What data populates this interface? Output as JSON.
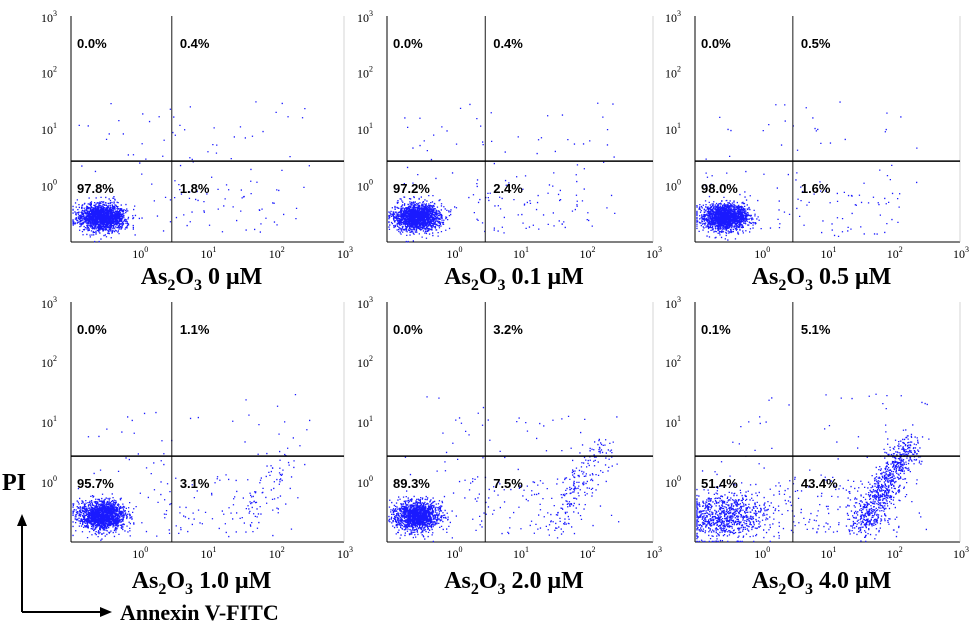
{
  "figure": {
    "y_axis_label": "PI",
    "x_axis_label": "Annexin  V-FITC",
    "colors": {
      "dots": "#1a1aff",
      "axes": "#000000",
      "background": "#ffffff"
    }
  },
  "chart_data": [
    {
      "type": "scatter",
      "caption": {
        "prefix": "As",
        "sub1": "2",
        "mid": "O",
        "sub2": "3",
        "suffix": " 0 μM"
      },
      "x_ticks": [
        "10⁰",
        "10¹",
        "10²",
        "10³"
      ],
      "x_ticks_display": [
        "10",
        "10",
        "10",
        "10"
      ],
      "x_tick_exponents": [
        "0",
        "1",
        "2",
        "3"
      ],
      "y_ticks_display": [
        "10",
        "10",
        "10",
        "10"
      ],
      "y_tick_exponents": [
        "0",
        "1",
        "2",
        "3"
      ],
      "x_scale": "log",
      "y_scale": "log",
      "xlim": [
        0.1,
        1000
      ],
      "ylim": [
        0.1,
        1000
      ],
      "gate": {
        "x": 3,
        "y": 2.7
      },
      "quadrants": {
        "upper_left": "0.0%",
        "upper_right": "0.4%",
        "lower_left": "97.8%",
        "lower_right": "1.8%"
      },
      "distribution": {
        "apoptotic_spread": 0.02,
        "diagonal": 0.0
      }
    },
    {
      "type": "scatter",
      "caption": {
        "prefix": "As",
        "sub1": "2",
        "mid": "O",
        "sub2": "3",
        "suffix": " 0.1 μM"
      },
      "x_ticks_display": [
        "10",
        "10",
        "10",
        "10"
      ],
      "x_tick_exponents": [
        "0",
        "1",
        "2",
        "3"
      ],
      "y_ticks_display": [
        "10",
        "10",
        "10",
        "10"
      ],
      "y_tick_exponents": [
        "0",
        "1",
        "2",
        "3"
      ],
      "x_scale": "log",
      "y_scale": "log",
      "xlim": [
        0.1,
        1000
      ],
      "ylim": [
        0.1,
        1000
      ],
      "gate": {
        "x": 3,
        "y": 2.7
      },
      "quadrants": {
        "upper_left": "0.0%",
        "upper_right": "0.4%",
        "lower_left": "97.2%",
        "lower_right": "2.4%"
      },
      "distribution": {
        "apoptotic_spread": 0.03,
        "diagonal": 0.0
      }
    },
    {
      "type": "scatter",
      "caption": {
        "prefix": "As",
        "sub1": "2",
        "mid": "O",
        "sub2": "3",
        "suffix": " 0.5 μM"
      },
      "x_ticks_display": [
        "10",
        "10",
        "10",
        "10"
      ],
      "x_tick_exponents": [
        "0",
        "1",
        "2",
        "3"
      ],
      "y_ticks_display": [
        "10",
        "10",
        "10",
        "10"
      ],
      "y_tick_exponents": [
        "0",
        "1",
        "2",
        "3"
      ],
      "x_scale": "log",
      "y_scale": "log",
      "xlim": [
        0.1,
        1000
      ],
      "ylim": [
        0.1,
        1000
      ],
      "gate": {
        "x": 3,
        "y": 2.7
      },
      "quadrants": {
        "upper_left": "0.0%",
        "upper_right": "0.5%",
        "lower_left": "98.0%",
        "lower_right": "1.6%"
      },
      "distribution": {
        "apoptotic_spread": 0.02,
        "diagonal": 0.0
      }
    },
    {
      "type": "scatter",
      "caption": {
        "prefix": "As",
        "sub1": "2",
        "mid": "O",
        "sub2": "3",
        "suffix": " 1.0 μM"
      },
      "x_ticks_display": [
        "10",
        "10",
        "10",
        "10"
      ],
      "x_tick_exponents": [
        "0",
        "1",
        "2",
        "3"
      ],
      "y_ticks_display": [
        "10",
        "10",
        "10",
        "10"
      ],
      "y_tick_exponents": [
        "0",
        "1",
        "2",
        "3"
      ],
      "x_scale": "log",
      "y_scale": "log",
      "xlim": [
        0.1,
        1000
      ],
      "ylim": [
        0.1,
        1000
      ],
      "gate": {
        "x": 3,
        "y": 2.7
      },
      "quadrants": {
        "upper_left": "0.0%",
        "upper_right": "1.1%",
        "lower_left": "95.7%",
        "lower_right": "3.1%"
      },
      "distribution": {
        "apoptotic_spread": 0.04,
        "diagonal": 0.03
      }
    },
    {
      "type": "scatter",
      "caption": {
        "prefix": "As",
        "sub1": "2",
        "mid": "O",
        "sub2": "3",
        "suffix": " 2.0 μM"
      },
      "x_ticks_display": [
        "10",
        "10",
        "10",
        "10"
      ],
      "x_tick_exponents": [
        "0",
        "1",
        "2",
        "3"
      ],
      "y_ticks_display": [
        "10",
        "10",
        "10",
        "10"
      ],
      "y_tick_exponents": [
        "0",
        "1",
        "2",
        "3"
      ],
      "x_scale": "log",
      "y_scale": "log",
      "xlim": [
        0.1,
        1000
      ],
      "ylim": [
        0.1,
        1000
      ],
      "gate": {
        "x": 3,
        "y": 2.7
      },
      "quadrants": {
        "upper_left": "0.0%",
        "upper_right": "3.2%",
        "lower_left": "89.3%",
        "lower_right": "7.5%"
      },
      "distribution": {
        "apoptotic_spread": 0.05,
        "diagonal": 0.09
      }
    },
    {
      "type": "scatter",
      "caption": {
        "prefix": "As",
        "sub1": "2",
        "mid": "O",
        "sub2": "3",
        "suffix": " 4.0 μM"
      },
      "x_ticks_display": [
        "10",
        "10",
        "10",
        "10"
      ],
      "x_tick_exponents": [
        "0",
        "1",
        "2",
        "3"
      ],
      "y_ticks_display": [
        "10",
        "10",
        "10",
        "10"
      ],
      "y_tick_exponents": [
        "0",
        "1",
        "2",
        "3"
      ],
      "x_scale": "log",
      "y_scale": "log",
      "xlim": [
        0.1,
        1000
      ],
      "ylim": [
        0.1,
        1000
      ],
      "gate": {
        "x": 3,
        "y": 2.7
      },
      "quadrants": {
        "upper_left": "0.1%",
        "upper_right": "5.1%",
        "lower_left": "51.4%",
        "lower_right": "43.4%"
      },
      "distribution": {
        "apoptotic_spread": 0.08,
        "diagonal": 0.42
      }
    }
  ]
}
